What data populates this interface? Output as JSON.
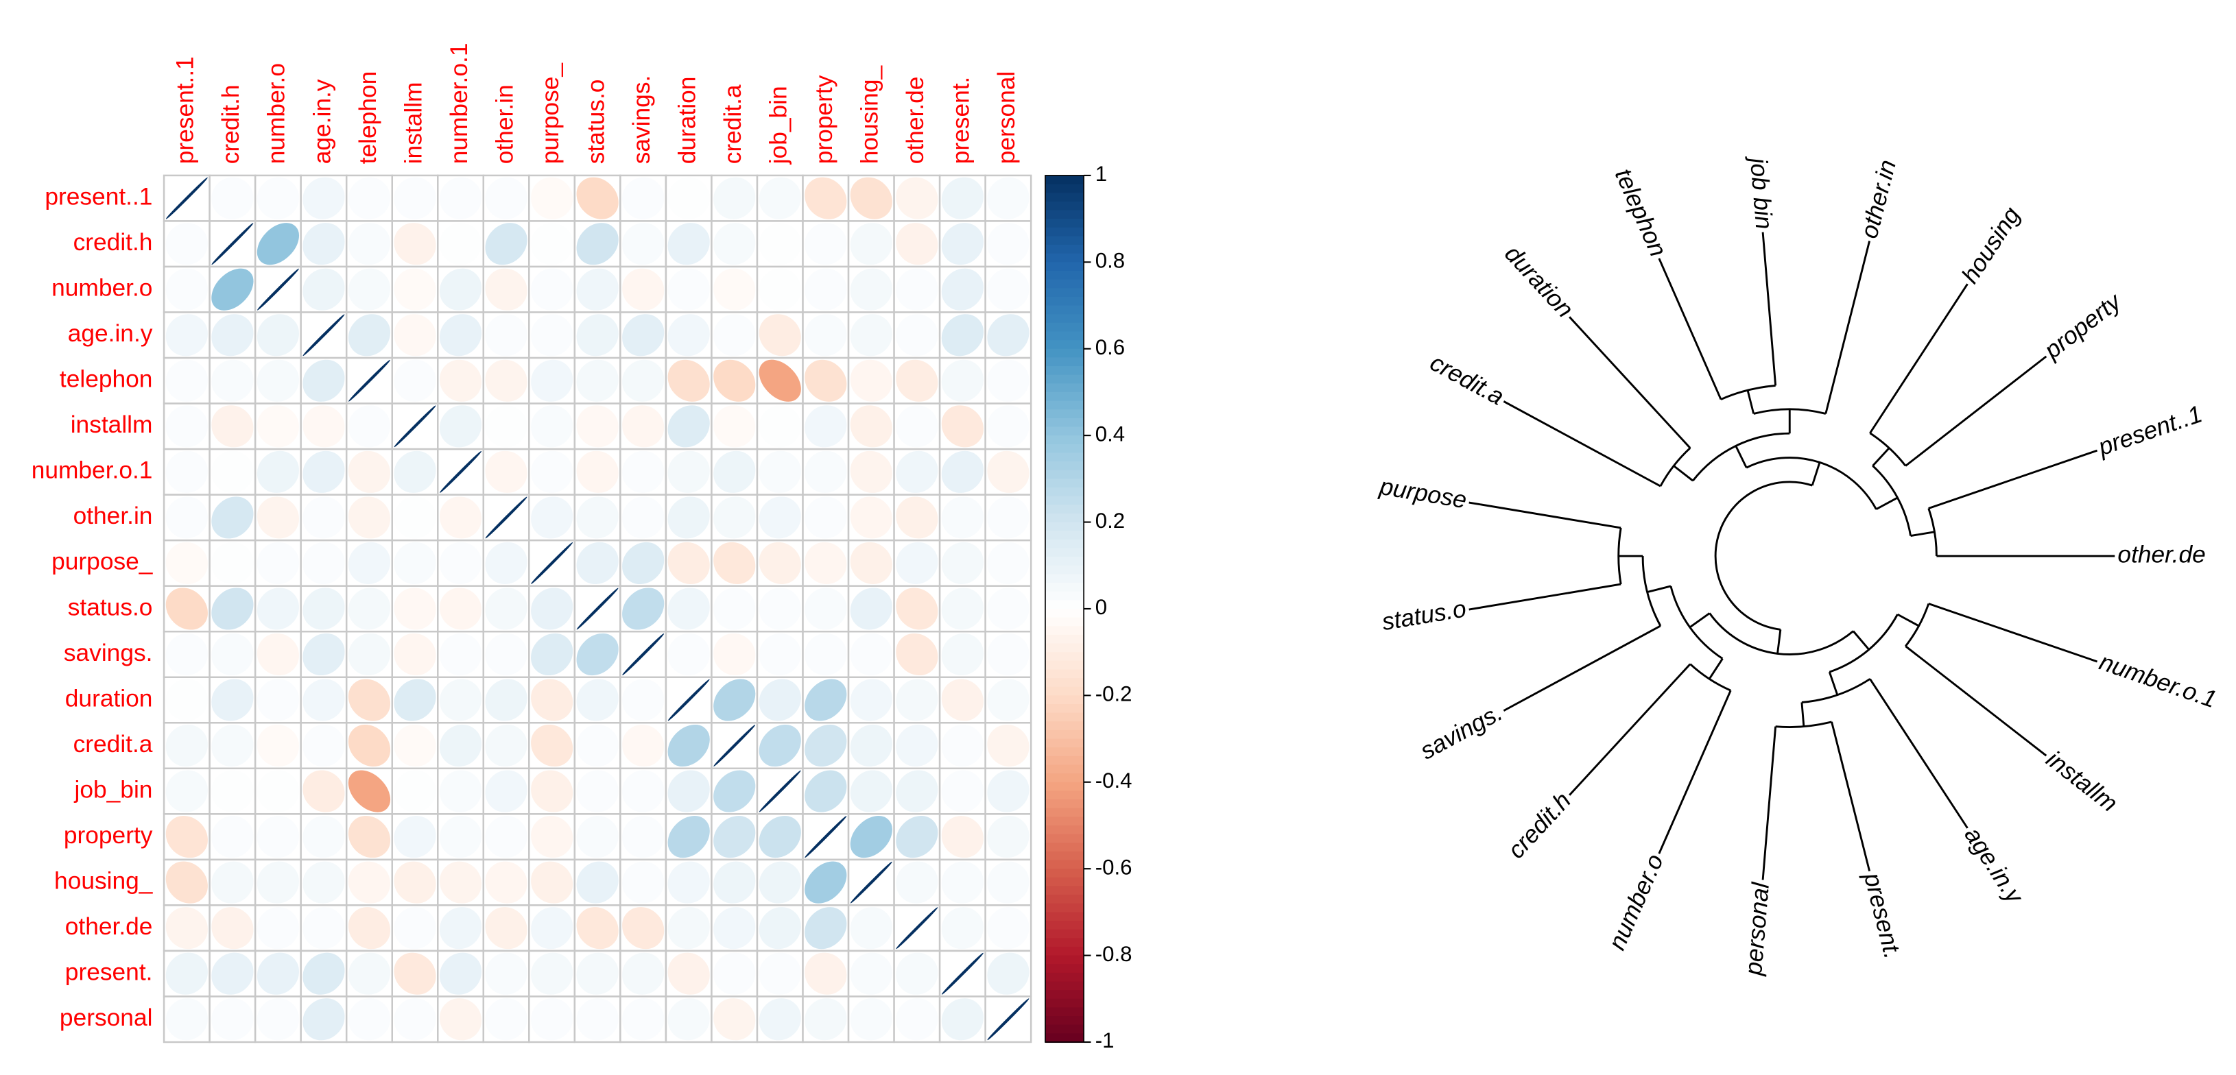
{
  "chart_data": [
    {
      "type": "corrplot",
      "labels": [
        "present..1",
        "credit.h",
        "number.o",
        "age.in.y",
        "telephon",
        "installm",
        "number.o.1",
        "other.in",
        "purpose_",
        "status.o",
        "savings.",
        "duration",
        "credit.a",
        "job_bin",
        "property",
        "housing_",
        "other.de",
        "present.",
        "personal"
      ],
      "matrix": [
        [
          1,
          0.02,
          0.02,
          0.06,
          0.02,
          0.02,
          0.02,
          0.02,
          -0.03,
          -0.2,
          0.02,
          0.01,
          0.05,
          0.04,
          -0.15,
          -0.16,
          -0.06,
          0.08,
          0.03
        ],
        [
          0.02,
          1,
          0.4,
          0.1,
          0.03,
          -0.07,
          0.01,
          0.18,
          0.01,
          0.2,
          0.03,
          0.1,
          0.04,
          0.01,
          0.02,
          0.05,
          -0.07,
          0.1,
          0.02
        ],
        [
          0.02,
          0.4,
          1,
          0.08,
          0.04,
          -0.03,
          0.08,
          -0.06,
          0.02,
          0.07,
          -0.05,
          0.02,
          -0.03,
          0.01,
          0.02,
          0.05,
          0.02,
          0.1,
          0.02
        ],
        [
          0.06,
          0.1,
          0.08,
          1,
          0.13,
          -0.04,
          0.1,
          0.02,
          0.02,
          0.08,
          0.12,
          0.06,
          0.02,
          -0.1,
          0.03,
          0.05,
          0.02,
          0.15,
          0.12
        ],
        [
          0.02,
          0.03,
          0.04,
          0.13,
          1,
          0.02,
          -0.06,
          -0.06,
          0.06,
          0.05,
          0.05,
          -0.17,
          -0.2,
          -0.4,
          -0.16,
          -0.05,
          -0.1,
          0.05,
          0.02
        ],
        [
          0.02,
          -0.07,
          -0.03,
          -0.04,
          0.02,
          1,
          0.08,
          0.01,
          0.03,
          -0.04,
          -0.05,
          0.15,
          -0.03,
          0.01,
          0.06,
          -0.08,
          0.02,
          -0.12,
          0.02
        ],
        [
          0.02,
          0.01,
          0.08,
          0.1,
          -0.06,
          0.08,
          1,
          -0.05,
          0.02,
          -0.05,
          0.02,
          0.05,
          0.08,
          0.03,
          0.03,
          -0.06,
          0.07,
          0.1,
          -0.06
        ],
        [
          0.02,
          0.18,
          -0.06,
          0.02,
          -0.06,
          0.01,
          -0.05,
          1,
          0.06,
          0.05,
          0.02,
          0.08,
          0.05,
          0.06,
          0.02,
          -0.05,
          -0.08,
          0.03,
          0.02
        ],
        [
          -0.03,
          0.01,
          0.02,
          0.02,
          0.06,
          0.03,
          0.02,
          0.06,
          1,
          0.1,
          0.15,
          -0.1,
          -0.13,
          -0.08,
          -0.05,
          -0.08,
          0.06,
          0.05,
          0.02
        ],
        [
          -0.2,
          0.2,
          0.07,
          0.08,
          0.05,
          -0.04,
          -0.05,
          0.05,
          0.1,
          1,
          0.25,
          0.07,
          0.02,
          0.02,
          0.03,
          0.1,
          -0.13,
          0.05,
          0.02
        ],
        [
          0.02,
          0.03,
          -0.05,
          0.12,
          0.05,
          -0.05,
          0.02,
          0.02,
          0.15,
          0.25,
          1,
          0.02,
          -0.04,
          0.02,
          0.02,
          0.02,
          -0.12,
          0.05,
          0.02
        ],
        [
          0.01,
          0.1,
          0.02,
          0.06,
          -0.17,
          0.15,
          0.05,
          0.08,
          -0.1,
          0.07,
          0.02,
          1,
          0.3,
          0.1,
          0.28,
          0.06,
          0.05,
          -0.07,
          0.04
        ],
        [
          0.05,
          0.04,
          -0.03,
          0.02,
          -0.2,
          -0.03,
          0.08,
          0.05,
          -0.13,
          0.02,
          -0.04,
          0.3,
          1,
          0.25,
          0.2,
          0.08,
          0.06,
          0.02,
          -0.06
        ],
        [
          0.04,
          0.01,
          0.01,
          -0.1,
          -0.4,
          0.01,
          0.03,
          0.06,
          -0.08,
          0.02,
          0.02,
          0.1,
          0.25,
          1,
          0.22,
          0.08,
          0.08,
          0.02,
          0.07
        ],
        [
          -0.15,
          0.02,
          0.02,
          0.03,
          -0.16,
          0.06,
          0.03,
          0.02,
          -0.05,
          0.03,
          0.02,
          0.28,
          0.2,
          0.22,
          1,
          0.35,
          0.2,
          -0.07,
          0.05
        ],
        [
          -0.16,
          0.05,
          0.05,
          0.05,
          -0.05,
          -0.08,
          -0.06,
          -0.05,
          -0.08,
          0.1,
          0.02,
          0.06,
          0.08,
          0.08,
          0.35,
          1,
          0.04,
          0.03,
          0.03
        ],
        [
          -0.06,
          -0.07,
          0.02,
          0.02,
          -0.1,
          0.02,
          0.07,
          -0.08,
          0.06,
          -0.13,
          -0.12,
          0.05,
          0.06,
          0.08,
          0.2,
          0.04,
          1,
          0.04,
          0.02
        ],
        [
          0.08,
          0.1,
          0.1,
          0.15,
          0.05,
          -0.12,
          0.1,
          0.03,
          0.05,
          0.05,
          0.05,
          -0.07,
          0.02,
          0.02,
          -0.07,
          0.03,
          0.04,
          1,
          0.08
        ],
        [
          0.03,
          0.02,
          0.02,
          0.12,
          0.02,
          0.02,
          -0.06,
          0.02,
          0.02,
          0.02,
          0.02,
          0.04,
          -0.06,
          0.07,
          0.05,
          0.03,
          0.02,
          0.08,
          1
        ]
      ],
      "colors": [
        "#67001F",
        "#B2182B",
        "#D6604D",
        "#F4A582",
        "#FDDBC7",
        "#FFFFFF",
        "#D1E5F0",
        "#92C5DE",
        "#4393C3",
        "#2166AC",
        "#053061"
      ],
      "label_color": "#ff0000",
      "zlim": [
        -1,
        1
      ],
      "zticks": [
        -1,
        -0.8,
        -0.6,
        -0.4,
        -0.2,
        0,
        0.2,
        0.4,
        0.6,
        0.8,
        1
      ]
    },
    {
      "type": "dendrogram",
      "labels": [
        "number.o.1",
        "installm",
        "age.in.y",
        "present.",
        "personal",
        "number.o",
        "credit.h",
        "savings.",
        "status.o",
        "purpose",
        "credit.a",
        "duration",
        "telephon",
        "job bin",
        "other.in",
        "housing",
        "property",
        "present..1",
        "other.de"
      ],
      "tree": [
        [
          [
            [
              0,
              1
            ],
            [
              2,
              [
                3,
                4
              ]
            ]
          ],
          [
            [
              5,
              6
            ],
            [
              7,
              [
                8,
                9
              ]
            ]
          ]
        ],
        [
          [
            [
              10,
              11
            ],
            [
              [
                12,
                13
              ],
              14
            ]
          ],
          [
            [
              15,
              16
            ],
            [
              17,
              18
            ]
          ]
        ]
      ]
    }
  ]
}
